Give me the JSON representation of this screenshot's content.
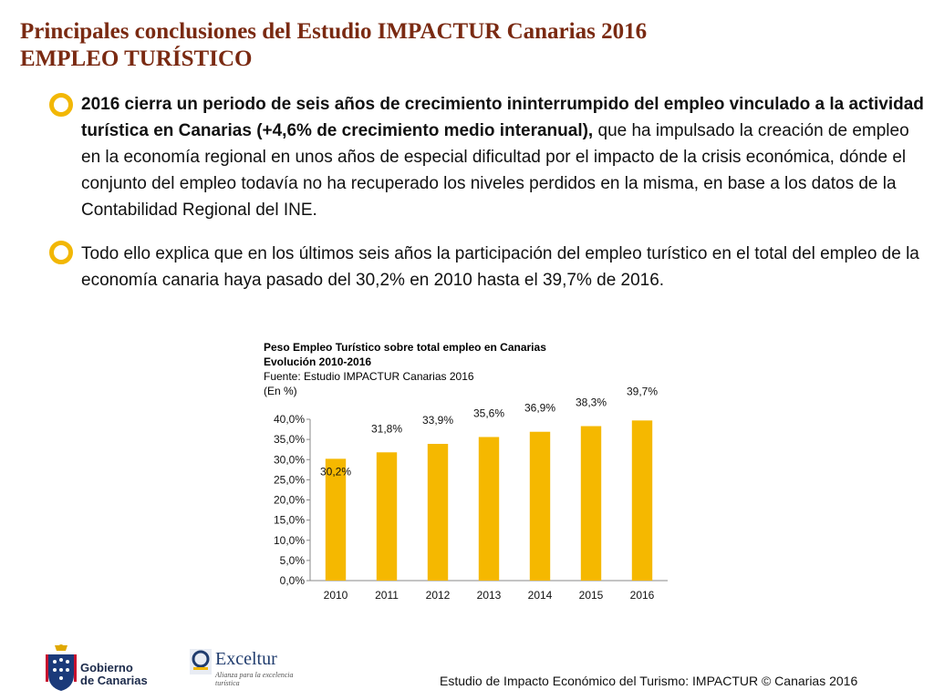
{
  "header": {
    "title": "Principales conclusiones del Estudio IMPACTUR Canarias 2016",
    "subtitle": "EMPLEO TURÍSTICO"
  },
  "bullets": [
    {
      "bold": "2016 cierra un periodo de seis años de crecimiento ininterrumpido del empleo vinculado a la actividad turística en Canarias (+4,6% de crecimiento medio interanual),",
      "text": " que ha impulsado la creación de empleo en la economía regional en unos años de especial dificultad por el impacto de la crisis económica, dónde el conjunto del empleo todavía no ha recuperado los niveles perdidos en la misma, en base a los datos de la Contabilidad Regional del INE."
    },
    {
      "bold": "",
      "text": "Todo ello explica que en los últimos seis años la participación del empleo turístico en el total del empleo de la economía canaria haya pasado del 30,2% en 2010 hasta el 39,7% de 2016."
    }
  ],
  "chart_header": {
    "line1": "Peso Empleo Turístico sobre total empleo en Canarias",
    "line2": "Evolución 2010-2016",
    "line3": "Fuente: Estudio IMPACTUR Canarias 2016",
    "line4": "(En %)"
  },
  "chart_data": {
    "type": "bar",
    "categories": [
      "2010",
      "2011",
      "2012",
      "2013",
      "2014",
      "2015",
      "2016"
    ],
    "values": [
      30.2,
      31.8,
      33.9,
      35.6,
      36.9,
      38.3,
      39.7
    ],
    "value_labels": [
      "30,2%",
      "31,8%",
      "33,9%",
      "35,6%",
      "36,9%",
      "38,3%",
      "39,7%"
    ],
    "yticks": [
      "0,0%",
      "5,0%",
      "10,0%",
      "15,0%",
      "20,0%",
      "25,0%",
      "30,0%",
      "35,0%",
      "40,0%"
    ],
    "ylim": [
      0,
      40
    ],
    "grid": false,
    "bar_color": "#f5b800"
  },
  "footer": {
    "gobierno_line1": "Gobierno",
    "gobierno_line2": "de Canarias",
    "exceltur_name": "Exceltur",
    "exceltur_tag": "Alianza para la excelencia turística",
    "caption": "Estudio de Impacto Económico del Turismo: IMPACTUR © Canarias 2016"
  },
  "colors": {
    "title": "#7a2a12",
    "bullet": "#f2b705",
    "bar": "#f5b800"
  }
}
